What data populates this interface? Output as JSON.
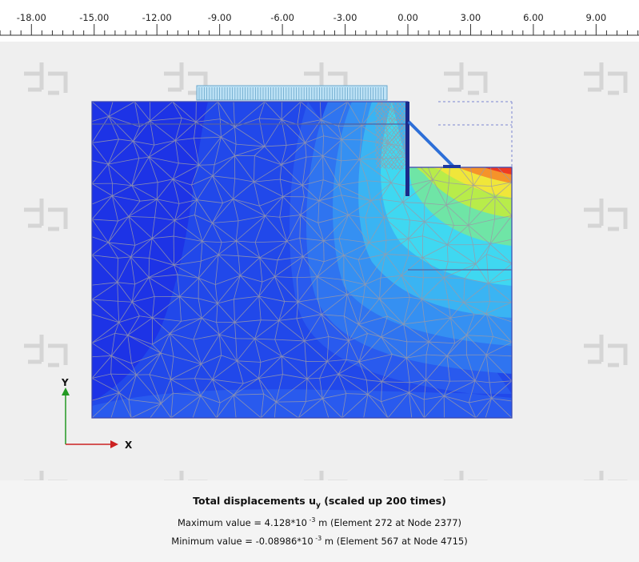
{
  "ruler": {
    "ticks": [
      "-18.00",
      "-15.00",
      "-12.00",
      "-9.00",
      "-6.00",
      "-3.00",
      "0.00",
      "3.00",
      "6.00",
      "9.00"
    ],
    "values": [
      -18,
      -15,
      -12,
      -9,
      -6,
      -3,
      0,
      3,
      6,
      9
    ]
  },
  "axes": {
    "x_label": "X",
    "y_label": "Y",
    "x_color": "#cc2222",
    "y_color": "#229922"
  },
  "caption": {
    "title_prefix": "Total displacements u",
    "title_subscript": "y",
    "title_suffix": " (scaled up 200 times)",
    "max_prefix": "Maximum value = 4.128*10",
    "max_exponent": " -3",
    "max_suffix": " m (Element 272 at Node 2377)",
    "min_prefix": "Minimum value = -0.08986*10",
    "min_exponent": " -3",
    "min_suffix": " m (Element 567 at Node 4715)"
  },
  "colors": {
    "deep_blue": "#1d33e6",
    "mid_blue": "#2560ee",
    "light_blue": "#38a8f2",
    "cyan": "#3fe0f0",
    "green": "#7ae86a",
    "yellow": "#f0f03c",
    "orange": "#f59a24",
    "red": "#ef3222"
  }
}
